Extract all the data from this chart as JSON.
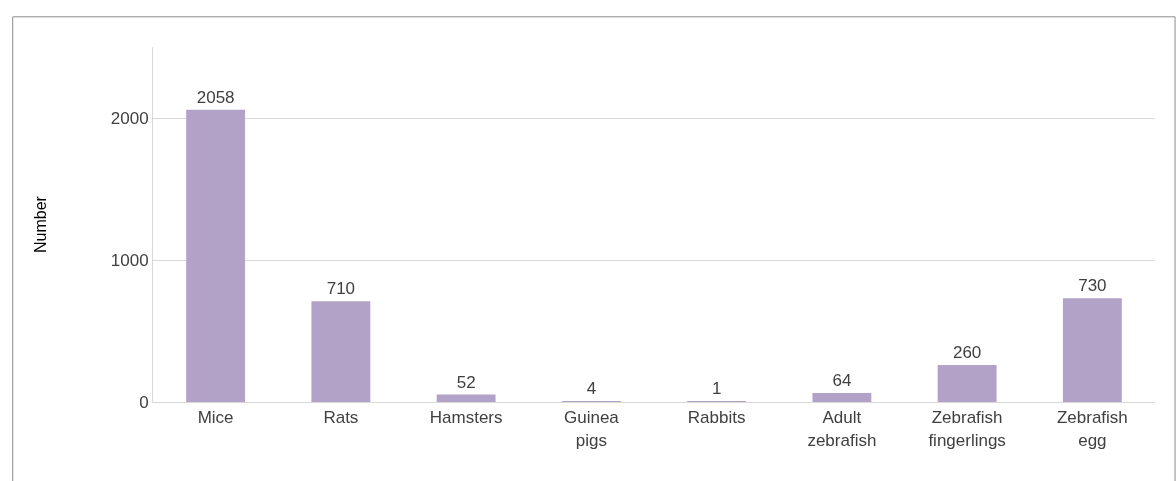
{
  "chart_data": {
    "type": "bar",
    "ylabel": "Number",
    "categories": [
      "Mice",
      "Rats",
      "Hamsters",
      "Guinea pigs",
      "Rabbits",
      "Adult zebrafish",
      "Zebrafish fingerlings",
      "Zebrafish egg"
    ],
    "values": [
      2058,
      710,
      52,
      4,
      1,
      64,
      260,
      730
    ],
    "color": "#b3a2c7",
    "data_labels": true,
    "ylim": [
      0,
      2500
    ],
    "yticks": [
      0,
      1000,
      2000
    ],
    "grid": "y"
  }
}
